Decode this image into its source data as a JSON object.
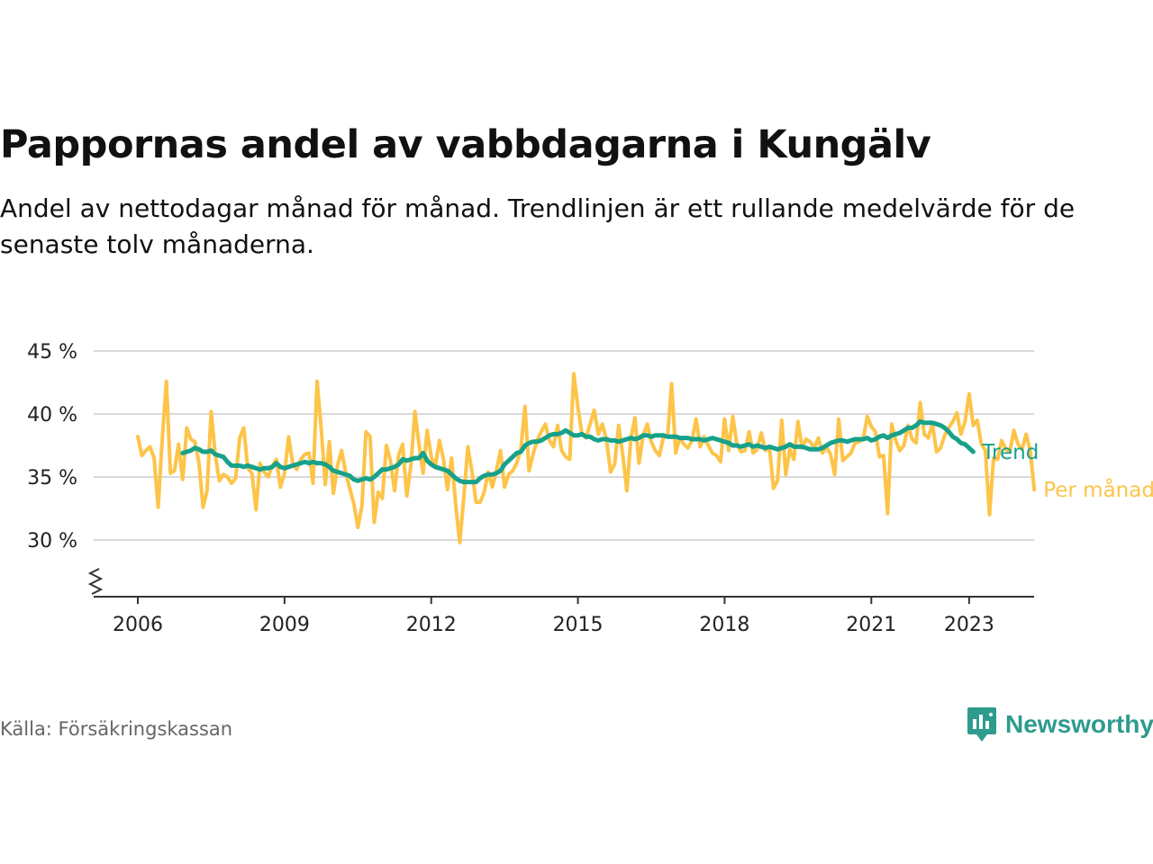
{
  "title": "Pappornas andel av vabbdagarna i Kungälv",
  "subtitle": "Andel av nettodagar månad för månad. Trendlinjen är ett rullande medelvärde för de senaste tolv månaderna.",
  "source": "Källa: Försäkringskassan",
  "brand": "Newsworthy",
  "colors": {
    "monthly": "#fdc449",
    "trend": "#17a18a",
    "grid": "#d9d9d9",
    "axis": "#333333",
    "brand": "#2e9b8e"
  },
  "chart_data": {
    "type": "line",
    "x_unit": "year (decimal, months as /12)",
    "xticks": [
      2006,
      2009,
      2012,
      2015,
      2018,
      2021,
      2023
    ],
    "yticks": [
      30,
      35,
      40,
      45
    ],
    "ytick_labels": [
      "30 %",
      "35 %",
      "40 %",
      "45 %"
    ],
    "ylim": [
      25,
      45
    ],
    "y_axis_break": true,
    "grid": "horizontal",
    "legend": "inline-right",
    "series": [
      {
        "name": "Per månad",
        "color": "#fdc449",
        "x_start": 2006.0,
        "step": 0.083333,
        "values": [
          38.2,
          36.7,
          37.1,
          37.4,
          36.5,
          32.6,
          38.0,
          42.6,
          35.3,
          35.5,
          37.6,
          34.8,
          38.9,
          38.0,
          37.8,
          36.1,
          32.6,
          33.9,
          40.2,
          36.8,
          34.7,
          35.2,
          35.0,
          34.5,
          34.9,
          38.1,
          38.9,
          35.7,
          35.3,
          32.4,
          36.1,
          35.4,
          35.0,
          35.9,
          36.4,
          34.2,
          35.3,
          38.2,
          36.1,
          35.6,
          36.4,
          36.8,
          36.9,
          34.5,
          42.6,
          38.8,
          34.4,
          37.8,
          33.7,
          35.9,
          37.1,
          35.4,
          34.1,
          32.9,
          31.0,
          32.7,
          38.6,
          38.2,
          31.4,
          33.8,
          33.3,
          37.5,
          36.3,
          33.9,
          36.7,
          37.6,
          33.5,
          35.9,
          40.2,
          37.6,
          35.3,
          38.7,
          36.6,
          35.8,
          37.9,
          36.4,
          34.0,
          36.5,
          32.8,
          29.8,
          33.4,
          37.4,
          35.4,
          33.0,
          33.0,
          33.8,
          35.4,
          34.2,
          35.5,
          37.1,
          34.2,
          35.2,
          35.5,
          36.1,
          37.2,
          40.6,
          35.5,
          36.8,
          37.9,
          38.6,
          39.2,
          37.9,
          37.4,
          39.1,
          37.1,
          36.6,
          36.4,
          43.2,
          40.5,
          38.4,
          38.1,
          39.2,
          40.3,
          38.4,
          39.2,
          38.0,
          35.4,
          36.0,
          39.1,
          36.8,
          33.9,
          38.1,
          39.7,
          36.1,
          38.3,
          39.2,
          37.8,
          37.1,
          36.7,
          38.2,
          38.2,
          42.4,
          36.9,
          38.1,
          37.6,
          37.3,
          37.9,
          39.6,
          37.4,
          38.2,
          37.5,
          36.9,
          36.7,
          36.2,
          39.6,
          37.1,
          39.8,
          37.6,
          37.0,
          37.1,
          38.6,
          36.9,
          37.2,
          38.5,
          37.1,
          37.4,
          34.1,
          34.7,
          39.5,
          35.2,
          37.2,
          36.4,
          39.4,
          37.3,
          38.0,
          37.8,
          37.3,
          38.1,
          36.9,
          37.4,
          36.8,
          35.2,
          39.6,
          36.3,
          36.6,
          36.9,
          37.7,
          37.8,
          38.0,
          39.8,
          39.0,
          38.6,
          36.6,
          36.7,
          32.1,
          39.2,
          37.9,
          37.1,
          37.5,
          39.1,
          38.0,
          37.7,
          40.9,
          38.4,
          38.1,
          39.2,
          37.0,
          37.3,
          38.3,
          38.9,
          39.4,
          40.1,
          38.4,
          39.4,
          41.6,
          39.1,
          39.5,
          37.6,
          37.1,
          32.0,
          36.5,
          36.4,
          37.9,
          37.2,
          37.0,
          38.7,
          37.6,
          37.2,
          38.4,
          37.1,
          34.0
        ]
      },
      {
        "name": "Trend",
        "color": "#17a18a",
        "x_start": 2006.9167,
        "step": 0.083333,
        "values": [
          36.9,
          37.0,
          37.1,
          37.3,
          37.2,
          37.0,
          37.0,
          37.1,
          36.8,
          36.7,
          36.6,
          36.2,
          35.9,
          35.9,
          35.9,
          35.8,
          35.9,
          35.8,
          35.7,
          35.6,
          35.7,
          35.7,
          35.8,
          36.1,
          35.8,
          35.7,
          35.8,
          35.9,
          36.0,
          36.1,
          36.2,
          36.1,
          36.2,
          36.1,
          36.1,
          36.0,
          35.8,
          35.5,
          35.4,
          35.3,
          35.2,
          35.1,
          34.8,
          34.7,
          34.8,
          34.9,
          34.8,
          35.0,
          35.3,
          35.6,
          35.6,
          35.7,
          35.8,
          36.0,
          36.4,
          36.3,
          36.4,
          36.5,
          36.5,
          36.9,
          36.3,
          36.0,
          35.8,
          35.7,
          35.6,
          35.5,
          35.2,
          34.9,
          34.7,
          34.6,
          34.6,
          34.6,
          34.6,
          34.9,
          35.1,
          35.2,
          35.2,
          35.3,
          35.5,
          36.0,
          36.3,
          36.6,
          36.9,
          37.0,
          37.5,
          37.7,
          37.8,
          37.8,
          37.9,
          38.1,
          38.3,
          38.4,
          38.4,
          38.5,
          38.7,
          38.5,
          38.3,
          38.3,
          38.4,
          38.2,
          38.2,
          38.0,
          37.9,
          38.0,
          38.0,
          37.9,
          37.9,
          37.8,
          37.9,
          38.0,
          38.1,
          38.0,
          38.1,
          38.3,
          38.3,
          38.2,
          38.3,
          38.3,
          38.3,
          38.2,
          38.2,
          38.2,
          38.1,
          38.1,
          38.1,
          38.0,
          38.0,
          38.0,
          37.9,
          38.0,
          38.1,
          38.0,
          37.9,
          37.8,
          37.7,
          37.5,
          37.5,
          37.4,
          37.5,
          37.6,
          37.4,
          37.5,
          37.4,
          37.3,
          37.4,
          37.3,
          37.2,
          37.3,
          37.4,
          37.6,
          37.4,
          37.4,
          37.4,
          37.3,
          37.2,
          37.2,
          37.2,
          37.3,
          37.5,
          37.7,
          37.8,
          37.9,
          37.9,
          37.8,
          37.9,
          38.0,
          38.0,
          38.0,
          38.1,
          37.9,
          38.0,
          38.2,
          38.3,
          38.1,
          38.3,
          38.4,
          38.5,
          38.7,
          38.9,
          38.9,
          39.1,
          39.4,
          39.3,
          39.3,
          39.3,
          39.2,
          39.1,
          38.9,
          38.6,
          38.2,
          38.0,
          37.7,
          37.6,
          37.3,
          37.0
        ]
      }
    ]
  }
}
